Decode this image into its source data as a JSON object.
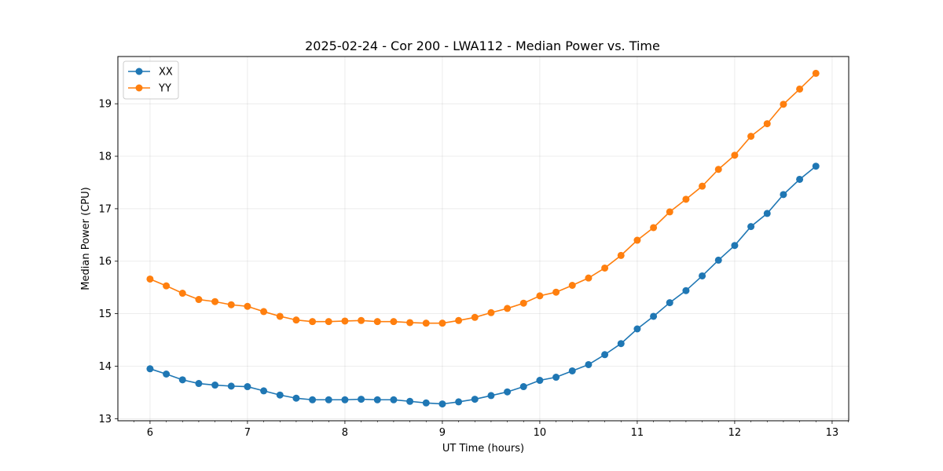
{
  "chart_data": {
    "type": "line",
    "title": "2025-02-24 - Cor 200 - LWA112 - Median Power vs. Time",
    "xlabel": "UT Time (hours)",
    "ylabel": "Median Power (CPU)",
    "xlim": [
      5.67,
      13.17
    ],
    "ylim": [
      12.96,
      19.9
    ],
    "xticks": [
      6,
      7,
      8,
      9,
      10,
      11,
      12,
      13
    ],
    "yticks": [
      13,
      14,
      15,
      16,
      17,
      18,
      19
    ],
    "grid": true,
    "legend_position": "top-left",
    "x": [
      6.0,
      6.1667,
      6.3333,
      6.5,
      6.6667,
      6.8333,
      7.0,
      7.1667,
      7.3333,
      7.5,
      7.6667,
      7.8333,
      8.0,
      8.1667,
      8.3333,
      8.5,
      8.6667,
      8.8333,
      9.0,
      9.1667,
      9.3333,
      9.5,
      9.6667,
      9.8333,
      10.0,
      10.1667,
      10.3333,
      10.5,
      10.6667,
      10.8333,
      11.0,
      11.1667,
      11.3333,
      11.5,
      11.6667,
      11.8333,
      12.0,
      12.1667,
      12.3333,
      12.5,
      12.6667,
      12.8333
    ],
    "series": [
      {
        "name": "XX",
        "color": "#1f77b4",
        "values": [
          13.95,
          13.85,
          13.74,
          13.67,
          13.64,
          13.62,
          13.61,
          13.53,
          13.45,
          13.39,
          13.36,
          13.36,
          13.36,
          13.37,
          13.36,
          13.36,
          13.33,
          13.3,
          13.28,
          13.32,
          13.37,
          13.44,
          13.51,
          13.61,
          13.73,
          13.79,
          13.91,
          14.03,
          14.22,
          14.43,
          14.71,
          14.95,
          15.21,
          15.44,
          15.72,
          16.02,
          16.3,
          16.66,
          16.91,
          17.27,
          17.56,
          17.81
        ]
      },
      {
        "name": "YY",
        "color": "#ff7f0e",
        "values": [
          15.66,
          15.53,
          15.39,
          15.27,
          15.23,
          15.17,
          15.14,
          15.04,
          14.95,
          14.88,
          14.85,
          14.85,
          14.86,
          14.87,
          14.85,
          14.85,
          14.83,
          14.82,
          14.82,
          14.87,
          14.93,
          15.02,
          15.1,
          15.2,
          15.34,
          15.41,
          15.54,
          15.68,
          15.87,
          16.11,
          16.4,
          16.64,
          16.94,
          17.18,
          17.43,
          17.75,
          18.02,
          18.38,
          18.62,
          18.99,
          19.28,
          19.58
        ]
      }
    ]
  }
}
